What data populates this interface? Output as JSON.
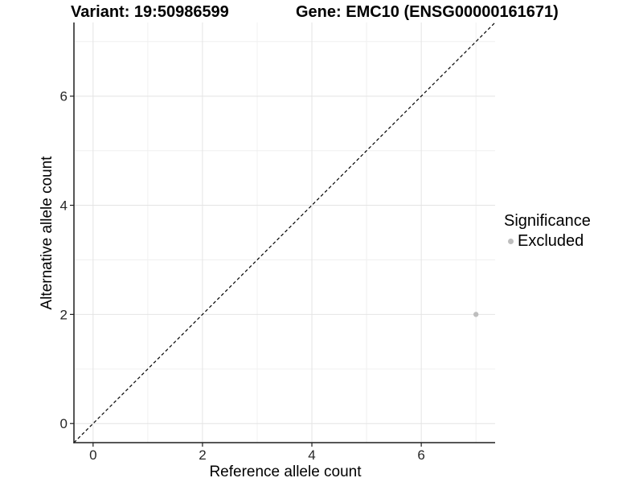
{
  "chart_data": {
    "type": "scatter",
    "title_left": "Variant: 19:50986599",
    "title_right": "Gene: EMC10 (ENSG00000161671)",
    "xlabel": "Reference allele count",
    "ylabel": "Alternative allele count",
    "xlim": [
      -0.35,
      7.35
    ],
    "ylim": [
      -0.35,
      7.35
    ],
    "x_major_ticks": [
      0,
      2,
      4,
      6
    ],
    "y_major_ticks": [
      0,
      2,
      4,
      6
    ],
    "x_minor_ticks": [
      1,
      3,
      5,
      7
    ],
    "y_minor_ticks": [
      1,
      3,
      5,
      7
    ],
    "grid": "major+minor",
    "reference_line": {
      "kind": "identity",
      "style": "dashed",
      "color": "#000000"
    },
    "series": [
      {
        "name": "Excluded",
        "color": "#bebebe",
        "point_radius": 3.2,
        "points": [
          {
            "x": 7,
            "y": 2
          }
        ]
      }
    ],
    "legend": {
      "title": "Significance",
      "position": "right",
      "items": [
        {
          "label": "Excluded",
          "color": "#bebebe"
        }
      ]
    },
    "colors": {
      "background": "#ffffff",
      "grid_major": "#e4e4e4",
      "grid_minor": "#f0f0f0",
      "axis_line": "#1f1f1f",
      "tick_mark": "#1f1f1f",
      "tick_label": "#262626"
    }
  }
}
